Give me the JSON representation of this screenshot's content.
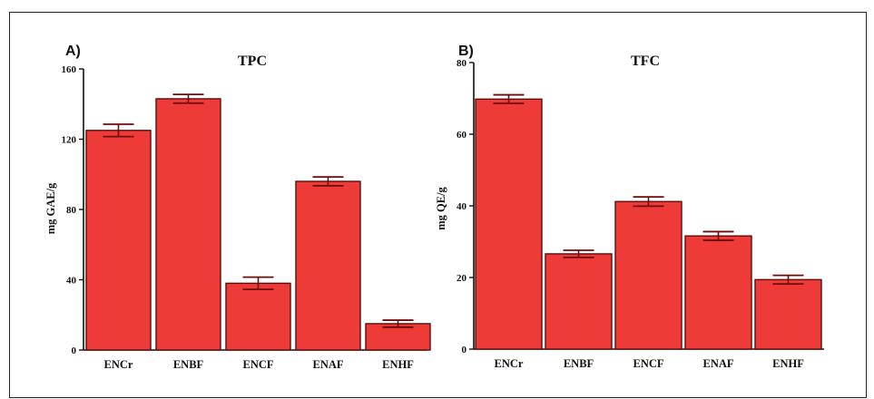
{
  "colors": {
    "bar": "#ee3b37",
    "bar_edge": "#5a0e0e",
    "error": "#6e0c0c",
    "axis": "#111111"
  },
  "chart_data": [
    {
      "type": "bar",
      "panel": "A)",
      "title": "TPC",
      "ylabel": "mg GAE/g",
      "xlabel": "",
      "categories": [
        "ENCr",
        "ENBF",
        "ENCF",
        "ENAF",
        "ENHF"
      ],
      "values": [
        125,
        143,
        38,
        96,
        15
      ],
      "errors": [
        3.5,
        2.5,
        3.5,
        2.5,
        2
      ],
      "ylim": [
        0,
        160
      ],
      "yticks": [
        0,
        40,
        80,
        120,
        160
      ],
      "grid": false,
      "legend": "none"
    },
    {
      "type": "bar",
      "panel": "B)",
      "title": "TFC",
      "ylabel": "mg QE/g",
      "xlabel": "",
      "categories": [
        "ENCr",
        "ENBF",
        "ENCF",
        "ENAF",
        "ENHF"
      ],
      "values": [
        69.8,
        26.6,
        41.2,
        31.6,
        19.4
      ],
      "errors": [
        1.2,
        1.0,
        1.3,
        1.2,
        1.2
      ],
      "ylim": [
        0,
        80
      ],
      "yticks": [
        0,
        20,
        40,
        60,
        80
      ],
      "grid": false,
      "legend": "none"
    }
  ]
}
